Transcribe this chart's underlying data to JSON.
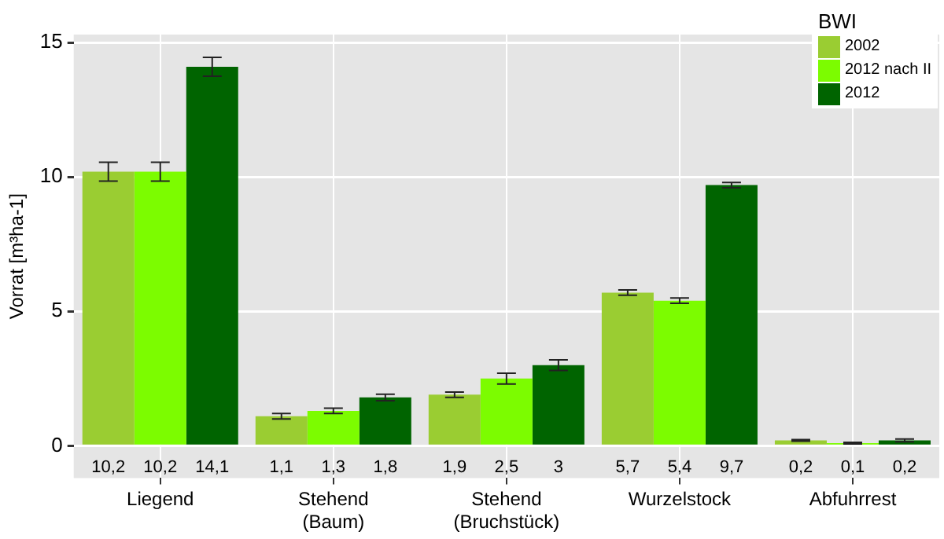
{
  "chart_data": {
    "type": "bar",
    "ylabel": "Vorrat [m³ha-1]",
    "legend_title": "BWI",
    "legend": "top right",
    "grid": true,
    "categories": [
      "Liegend",
      "Stehend\n(Baum)",
      "Stehend\n(Bruchstück)",
      "Wurzelstock",
      "Abfuhrrest"
    ],
    "ylim": [
      -1.2,
      15.3
    ],
    "yticks": [
      0,
      5,
      10,
      15
    ],
    "series": [
      {
        "name": "2002",
        "color": "#9acd32",
        "values": [
          10.2,
          1.1,
          1.9,
          5.7,
          0.2
        ],
        "errors": [
          0.35,
          0.1,
          0.1,
          0.1,
          0.03
        ],
        "value_labels": [
          "10,2",
          "1,1",
          "1,9",
          "5,7",
          "0,2"
        ]
      },
      {
        "name": "2012 nach II",
        "color": "#7cfc00",
        "values": [
          10.2,
          1.3,
          2.5,
          5.4,
          0.1
        ],
        "errors": [
          0.35,
          0.1,
          0.2,
          0.1,
          0.03
        ],
        "value_labels": [
          "10,2",
          "1,3",
          "2,5",
          "5,4",
          "0,1"
        ]
      },
      {
        "name": "2012",
        "color": "#006400",
        "values": [
          14.1,
          1.8,
          3,
          9.7,
          0.2
        ],
        "errors": [
          0.35,
          0.12,
          0.2,
          0.1,
          0.05
        ],
        "value_labels": [
          "14,1",
          "1,8",
          "3",
          "9,7",
          "0,2"
        ]
      }
    ]
  }
}
